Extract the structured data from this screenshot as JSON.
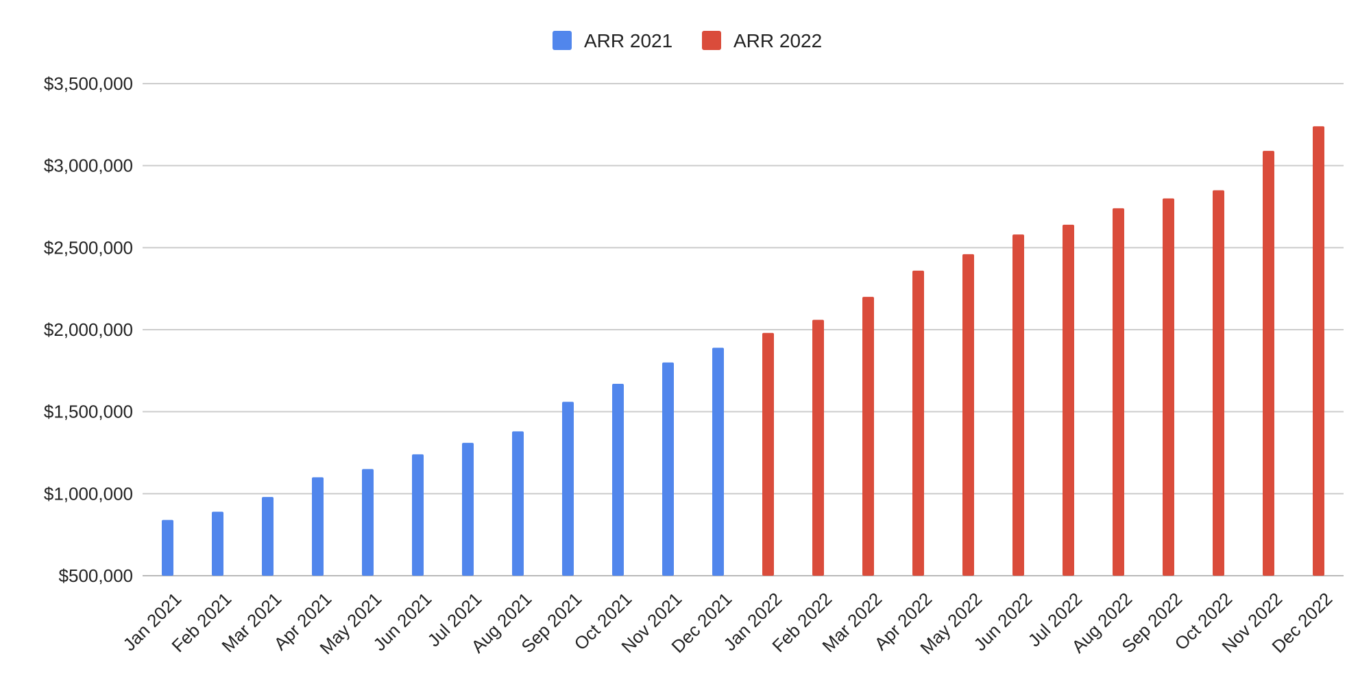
{
  "chart_data": {
    "type": "bar",
    "title": "",
    "xlabel": "",
    "ylabel": "",
    "categories": [
      "Jan 2021",
      "Feb 2021",
      "Mar 2021",
      "Apr 2021",
      "May 2021",
      "Jun 2021",
      "Jul 2021",
      "Aug 2021",
      "Sep 2021",
      "Oct 2021",
      "Nov 2021",
      "Dec 2021",
      "Jan 2022",
      "Feb 2022",
      "Mar 2022",
      "Apr 2022",
      "May 2022",
      "Jun 2022",
      "Jul 2022",
      "Aug 2022",
      "Sep 2022",
      "Oct 2022",
      "Nov 2022",
      "Dec 2022"
    ],
    "series": [
      {
        "name": "ARR 2021",
        "color": "#5186EC",
        "values": [
          840000,
          890000,
          980000,
          1100000,
          1150000,
          1240000,
          1310000,
          1380000,
          1560000,
          1670000,
          1800000,
          1890000,
          null,
          null,
          null,
          null,
          null,
          null,
          null,
          null,
          null,
          null,
          null,
          null
        ]
      },
      {
        "name": "ARR 2022",
        "color": "#DA4C3B",
        "values": [
          null,
          null,
          null,
          null,
          null,
          null,
          null,
          null,
          null,
          null,
          null,
          null,
          1980000,
          2060000,
          2200000,
          2360000,
          2460000,
          2580000,
          2640000,
          2740000,
          2800000,
          2850000,
          3090000,
          3240000
        ]
      }
    ],
    "ylim": [
      500000,
      3500000
    ],
    "yticks": [
      500000,
      1000000,
      1500000,
      2000000,
      2500000,
      3000000,
      3500000
    ],
    "ytick_labels": [
      "$500,000",
      "$1,000,000",
      "$1,500,000",
      "$2,000,000",
      "$2,500,000",
      "$3,000,000",
      "$3,500,000"
    ],
    "grid": true,
    "legend_position": "top-center"
  }
}
